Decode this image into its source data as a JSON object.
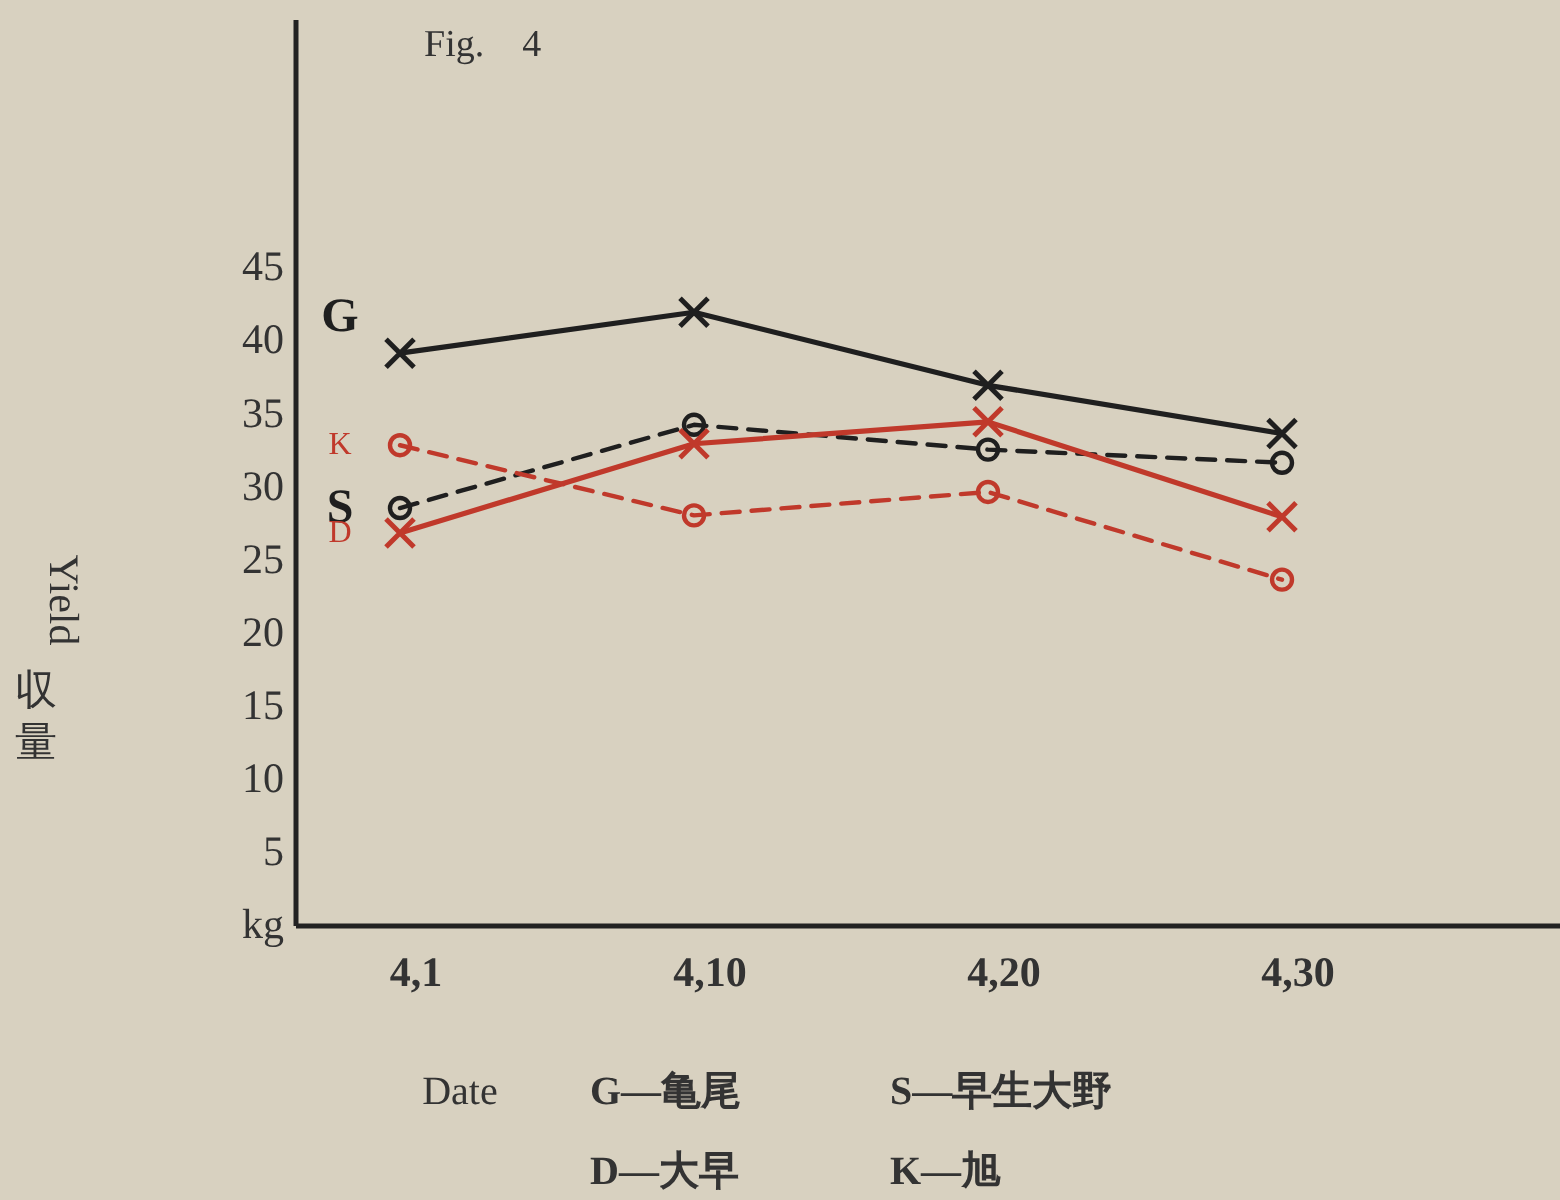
{
  "chart_data": {
    "type": "line",
    "title": "Fig.　4",
    "xlabel": "Date",
    "ylabel": "Yield 収量",
    "categories": [
      "4,1",
      "4,10",
      "4,20",
      "4,30"
    ],
    "ylim": [
      0,
      62
    ],
    "yticks": [
      {
        "value": 0,
        "label": "kg"
      },
      5,
      10,
      15,
      20,
      25,
      30,
      35,
      40,
      45
    ],
    "series": [
      {
        "name": "G",
        "color": "#1f1f1f",
        "marker": "cross",
        "line_style": "solid",
        "values": [
          39.2,
          42,
          37,
          33.7
        ]
      },
      {
        "name": "S",
        "color": "#1f1f1f",
        "marker": "circle",
        "line_style": "dashed",
        "values": [
          28.6,
          34.3,
          32.6,
          31.7
        ]
      },
      {
        "name": "D",
        "color": "#c0392b",
        "marker": "cross",
        "line_style": "solid",
        "values": [
          26.9,
          33,
          34.5,
          28
        ]
      },
      {
        "name": "K",
        "color": "#c0392b",
        "marker": "circle",
        "line_style": "dashed",
        "values": [
          32.9,
          28.1,
          29.7,
          23.7
        ]
      }
    ],
    "annotations": [
      "G—亀尾",
      "S—早生大野",
      "D—大早",
      "K—旭"
    ],
    "grid": false,
    "legend": "left"
  }
}
